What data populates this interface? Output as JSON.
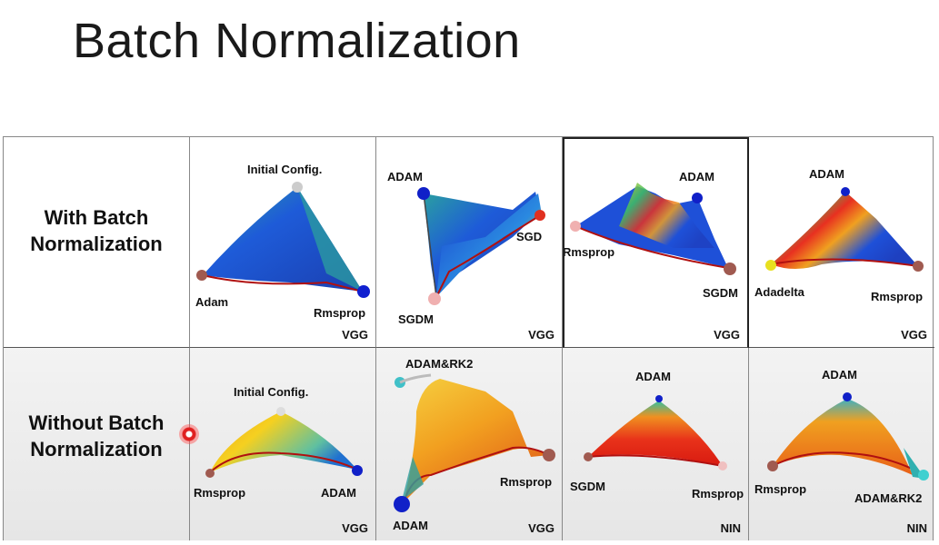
{
  "title": "Batch Normalization",
  "rows": [
    {
      "label_line1": "With Batch",
      "label_line2": "Normalization",
      "cells": [
        {
          "net": "VGG",
          "labels": [
            "Initial Config.",
            "Adam",
            "Rmsprop"
          ]
        },
        {
          "net": "VGG",
          "labels": [
            "ADAM",
            "SGD",
            "SGDM"
          ]
        },
        {
          "net": "VGG",
          "labels": [
            "ADAM",
            "Rmsprop",
            "SGDM"
          ]
        },
        {
          "net": "VGG",
          "labels": [
            "ADAM",
            "Adadelta",
            "Rmsprop"
          ]
        }
      ]
    },
    {
      "label_line1": "Without Batch",
      "label_line2": "Normalization",
      "cells": [
        {
          "net": "VGG",
          "labels": [
            "Initial Config.",
            "Rmsprop",
            "ADAM"
          ]
        },
        {
          "net": "VGG",
          "labels": [
            "ADAM&RK2",
            "Rmsprop",
            "ADAM"
          ]
        },
        {
          "net": "NIN",
          "labels": [
            "ADAM",
            "SGDM",
            "Rmsprop"
          ]
        },
        {
          "net": "NIN",
          "labels": [
            "ADAM",
            "Rmsprop",
            "ADAM&RK2"
          ]
        }
      ]
    }
  ],
  "colors": {
    "blue_surface": "#1e5bd8",
    "teal_surface": "#2fb3b0",
    "yellow_surface": "#f2c21b",
    "orange_surface": "#f08a1c",
    "red_surface": "#e8321a",
    "edge_red": "#b01010"
  }
}
